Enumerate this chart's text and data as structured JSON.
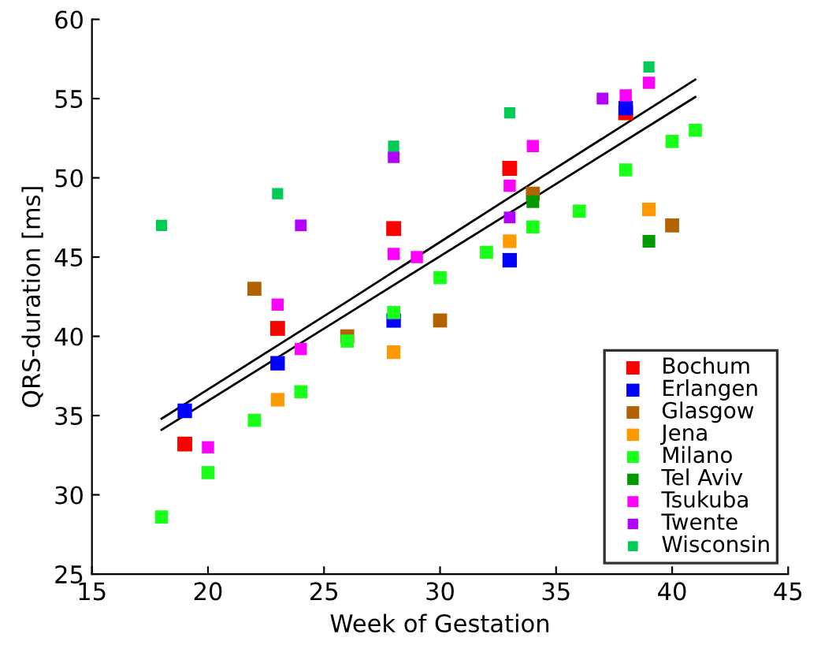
{
  "chart_data": {
    "type": "scatter",
    "xlabel": "Week of Gestation",
    "ylabel": "QRS-duration [ms]",
    "xlim": [
      15,
      45
    ],
    "xticks": [
      15,
      20,
      25,
      30,
      35,
      40,
      45
    ],
    "ylim": [
      25,
      60
    ],
    "yticks": [
      25,
      30,
      35,
      40,
      45,
      50,
      55,
      60
    ],
    "grid": false,
    "legend": "bottom right",
    "marker": "square",
    "series": [
      {
        "name": "Bochum",
        "color": "#ff0000",
        "x": [
          19,
          23,
          28,
          33,
          38
        ],
        "values": [
          33.2,
          40.5,
          46.8,
          50.6,
          54.1
        ]
      },
      {
        "name": "Erlangen",
        "color": "#0000ff",
        "x": [
          19,
          23,
          28,
          33,
          38
        ],
        "values": [
          35.3,
          38.3,
          41.0,
          44.8,
          54.4
        ]
      },
      {
        "name": "Glasgow",
        "color": "#b36200",
        "x": [
          22,
          26,
          30,
          34,
          40
        ],
        "values": [
          43.0,
          40.0,
          41.0,
          49.0,
          47.0
        ]
      },
      {
        "name": "Jena",
        "color": "#ff9900",
        "x": [
          23,
          28,
          33,
          39
        ],
        "values": [
          36.0,
          39.0,
          46.0,
          48.0
        ]
      },
      {
        "name": "Milano",
        "color": "#1aff1a",
        "x": [
          18,
          20,
          22,
          24,
          26,
          28,
          30,
          32,
          34,
          36,
          38,
          40,
          41
        ],
        "values": [
          28.6,
          31.4,
          34.7,
          36.5,
          39.7,
          41.5,
          43.7,
          45.3,
          46.9,
          47.9,
          50.5,
          52.3,
          53.0
        ]
      },
      {
        "name": "Tel Aviv",
        "color": "#009900",
        "x": [
          34,
          39
        ],
        "values": [
          48.5,
          46.0
        ]
      },
      {
        "name": "Tsukuba",
        "color": "#ff00ff",
        "x": [
          20,
          23,
          24,
          28,
          29,
          33,
          34,
          38,
          39
        ],
        "values": [
          33.0,
          42.0,
          39.2,
          45.2,
          45.0,
          49.5,
          52.0,
          55.2,
          56.0
        ]
      },
      {
        "name": "Twente",
        "color": "#b300ff",
        "x": [
          24,
          28,
          33,
          37
        ],
        "values": [
          47.0,
          51.3,
          47.5,
          55.0
        ]
      },
      {
        "name": "Wisconsin",
        "color": "#00cc55",
        "x": [
          18,
          23,
          28,
          33,
          39
        ],
        "values": [
          47.0,
          49.0,
          52.0,
          54.1,
          57.0
        ]
      },
      {
        "type": "line",
        "color": "#000000",
        "marker": "none",
        "x": [
          18,
          26,
          34,
          41
        ],
        "values": [
          34.8,
          42.2,
          49.7,
          56.2
        ]
      },
      {
        "type": "line",
        "color": "#000000",
        "marker": "none",
        "x": [
          18,
          26,
          34,
          41
        ],
        "values": [
          34.1,
          41.4,
          48.7,
          55.1
        ]
      }
    ]
  }
}
